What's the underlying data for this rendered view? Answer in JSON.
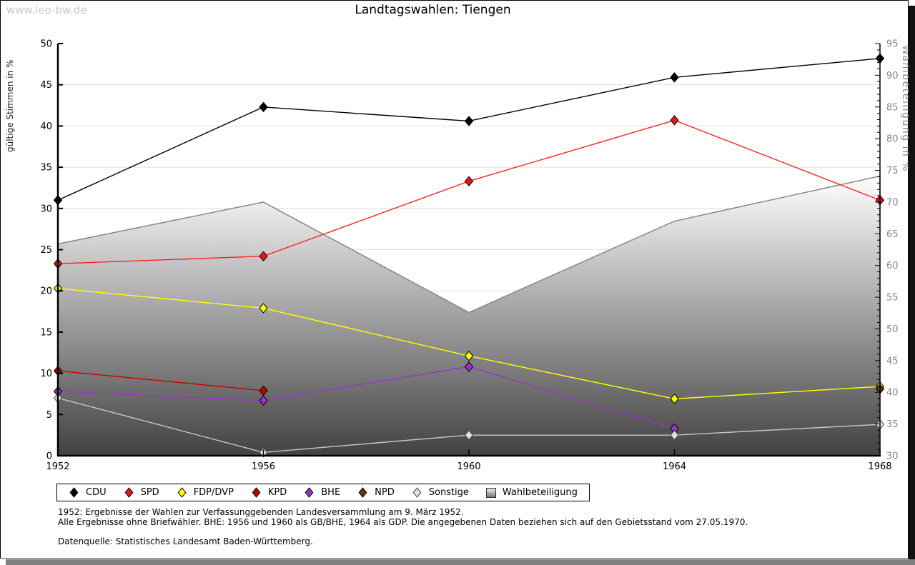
{
  "watermark": "www.leo-bw.de",
  "title": "Landtagswahlen: Tiengen",
  "chart_data": {
    "type": "line",
    "title": "Landtagswahlen: Tiengen",
    "x": [
      1952,
      1956,
      1960,
      1964,
      1968
    ],
    "grid": true,
    "legend_position": "bottom",
    "axes": {
      "left": {
        "label": "gültige Stimmen in %",
        "min": 0,
        "max": 50,
        "tick_step": 5
      },
      "right": {
        "label": "Wahlbeteiligung in %",
        "min": 30,
        "max": 95,
        "tick_step": 5,
        "minor_tick_step": 1
      }
    },
    "series": [
      {
        "name": "CDU",
        "type": "line",
        "axis": "left",
        "color": "#000000",
        "marker": "diamond",
        "marker_color": "#000000",
        "values": [
          31.0,
          42.3,
          40.6,
          45.9,
          48.2
        ]
      },
      {
        "name": "SPD",
        "type": "line",
        "axis": "left",
        "color": "#ff2222",
        "marker": "diamond",
        "marker_color": "#e31a1c",
        "values": [
          23.3,
          24.2,
          33.3,
          40.7,
          31.0
        ]
      },
      {
        "name": "FDP/DVP",
        "type": "line",
        "axis": "left",
        "color": "#ffff00",
        "marker": "diamond",
        "marker_color": "#ffff00",
        "values": [
          20.3,
          17.9,
          12.1,
          6.9,
          8.4
        ]
      },
      {
        "name": "KPD",
        "type": "line",
        "axis": "left",
        "color": "#cc0000",
        "marker": "diamond",
        "marker_color": "#bb0000",
        "values": [
          10.3,
          7.9,
          null,
          null,
          null
        ]
      },
      {
        "name": "BHE",
        "type": "line",
        "axis": "left",
        "color": "#9933cc",
        "marker": "diamond",
        "marker_color": "#9933cc",
        "values": [
          7.8,
          6.7,
          10.8,
          3.3,
          null
        ]
      },
      {
        "name": "NPD",
        "type": "line",
        "axis": "left",
        "color": "#663300",
        "marker": "diamond",
        "marker_color": "#663300",
        "values": [
          null,
          null,
          null,
          null,
          8.1
        ]
      },
      {
        "name": "Sonstige",
        "type": "line",
        "axis": "left",
        "color": "#c8c8c8",
        "marker": "diamond",
        "marker_color": "#e0e0e0",
        "marker_stroke": "#444444",
        "values": [
          7.0,
          0.4,
          2.5,
          2.5,
          3.8
        ]
      },
      {
        "name": "Wahlbeteiligung",
        "type": "area",
        "axis": "right",
        "color": "#888888",
        "fill_top": "#ffffff",
        "fill_bottom": "#424242",
        "values": [
          63.4,
          70.0,
          52.6,
          67.0,
          74.1
        ]
      }
    ]
  },
  "legend": {
    "items": [
      "CDU",
      "SPD",
      "FDP/DVP",
      "KPD",
      "BHE",
      "NPD",
      "Sonstige",
      "Wahlbeteiligung"
    ]
  },
  "footnotes": {
    "line1": "1952: Ergebnisse der Wahlen zur Verfassunggebenden Landesversammlung am 9. März 1952.",
    "line2": "Alle Ergebnisse ohne Briefwähler. BHE: 1956 und 1960 als GB/BHE, 1964 als GDP. Die angegebenen Daten beziehen sich auf den Gebietsstand vom 27.05.1970.",
    "source": "Datenquelle: Statistisches Landesamt Baden-Württemberg."
  }
}
